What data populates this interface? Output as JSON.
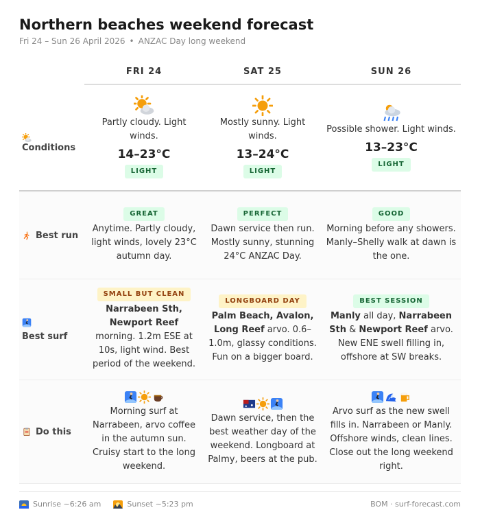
{
  "header": {
    "title": "Northern beaches weekend forecast",
    "subtitle": "Fri 24 – Sun 26 April 2026",
    "separator": "•",
    "note": "ANZAC Day long weekend"
  },
  "days": [
    "FRI 24",
    "SAT 25",
    "SUN 26"
  ],
  "rows": [
    {
      "label": "Conditions",
      "cells": [
        {
          "summary": "Partly cloudy. Light winds.",
          "temp": "14–23°C",
          "badge": {
            "text": "LIGHT",
            "color": "green"
          }
        },
        {
          "summary": "Mostly sunny. Light winds.",
          "temp": "13–24°C",
          "badge": {
            "text": "LIGHT",
            "color": "green"
          }
        },
        {
          "summary": "Possible shower. Light winds.",
          "temp": "13–23°C",
          "badge": {
            "text": "LIGHT",
            "color": "green"
          }
        }
      ]
    },
    {
      "label": "Best run",
      "cells": [
        {
          "badge": {
            "text": "GREAT",
            "color": "green"
          },
          "text": [
            {
              "text": "Anytime. Partly cloudy, light winds, lovely 23°C autumn day.",
              "bold": false
            }
          ]
        },
        {
          "badge": {
            "text": "PERFECT",
            "color": "green"
          },
          "text": [
            {
              "text": "Dawn service then run. Mostly sunny, stunning 24°C ANZAC Day.",
              "bold": false
            }
          ]
        },
        {
          "badge": {
            "text": "GOOD",
            "color": "green"
          },
          "text": [
            {
              "text": "Morning before any showers. Manly–Shelly walk at dawn is the one.",
              "bold": false
            }
          ]
        }
      ]
    },
    {
      "label": "Best surf",
      "cells": [
        {
          "badge": {
            "text": "SMALL BUT CLEAN",
            "color": "yellow"
          },
          "text": [
            {
              "text": "Narrabeen Sth, Newport Reef",
              "bold": true
            },
            {
              "text": " morning. 1.2m ESE at 10s, light wind. Best period of the weekend.",
              "bold": false
            }
          ]
        },
        {
          "badge": {
            "text": "LONGBOARD DAY",
            "color": "yellow"
          },
          "text": [
            {
              "text": "Palm Beach, Avalon, Long Reef",
              "bold": true
            },
            {
              "text": " arvo. 0.6–1.0m, glassy conditions. Fun on a bigger board.",
              "bold": false
            }
          ]
        },
        {
          "badge": {
            "text": "BEST SESSION",
            "color": "green"
          },
          "text": [
            {
              "text": "Manly",
              "bold": true
            },
            {
              "text": " all day, ",
              "bold": false
            },
            {
              "text": "Narrabeen Sth",
              "bold": true
            },
            {
              "text": " & ",
              "bold": false
            },
            {
              "text": "Newport Reef",
              "bold": true
            },
            {
              "text": " arvo. New ENE swell filling in, offshore at SW breaks.",
              "bold": false
            }
          ]
        }
      ]
    },
    {
      "label": "Do this",
      "cells": [
        {
          "text": [
            {
              "text": "Morning surf at Narrabeen, arvo coffee in the autumn sun. Cruisy start to the long weekend.",
              "bold": false
            }
          ]
        },
        {
          "text": [
            {
              "text": "Dawn service, then the best weather day of the weekend. Longboard at Palmy, beers at the pub.",
              "bold": false
            }
          ]
        },
        {
          "text": [
            {
              "text": "Arvo surf as the new swell fills in. Narrabeen or Manly. Offshore winds, clean lines. Close out the long weekend right.",
              "bold": false
            }
          ]
        }
      ]
    }
  ],
  "footer": {
    "sunrise": "Sunrise ~6:26 am",
    "sunset": "Sunset ~5:23 pm",
    "source": "BOM · surf-forecast.com"
  }
}
